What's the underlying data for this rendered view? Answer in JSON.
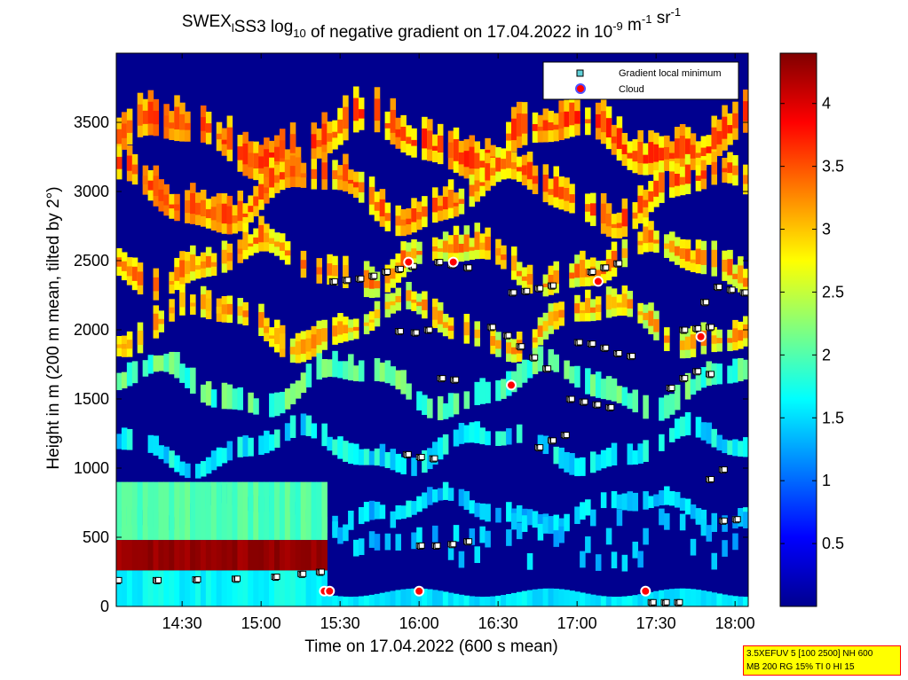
{
  "chart_data": {
    "type": "heatmap",
    "title": "SWEX_lSS3 log_10 of negative gradient on 17.04.2022 in 10^-9 m^-1 sr^-1",
    "xlabel": "Time on 17.04.2022 (600 s mean)",
    "ylabel": "Height in m (200 m mean, tilted by 2°)",
    "xlim": [
      "14:05",
      "18:05"
    ],
    "ylim": [
      0,
      4000
    ],
    "x_ticks": [
      "14:30",
      "15:00",
      "15:30",
      "16:00",
      "16:30",
      "17:00",
      "17:30",
      "18:00"
    ],
    "y_ticks": [
      0,
      500,
      1000,
      1500,
      2000,
      2500,
      3000,
      3500
    ],
    "colorbar": {
      "min": 0,
      "max": 4.4,
      "ticks": [
        0.5,
        1,
        1.5,
        2,
        2.5,
        3,
        3.5,
        4
      ],
      "colormap": "jet"
    },
    "legend_position": "top-right",
    "legend": [
      {
        "label": "Gradient local minimum",
        "marker": "square",
        "color": "#5fd0d8"
      },
      {
        "label": "Cloud",
        "marker": "circle",
        "color": "#ff0000"
      }
    ],
    "fields": {
      "surface_background": 1.3,
      "low_level_plateau": {
        "start": "14:05",
        "end": "15:25",
        "value": 2.0,
        "top": 900
      },
      "dense_layer": {
        "start": "14:05",
        "end": "15:25",
        "bottom": 260,
        "top": 480,
        "value": 4.4
      },
      "near_surface_band": {
        "start": "15:25",
        "end": "18:05",
        "height": 60,
        "value": 1.4
      }
    },
    "series": [
      {
        "name": "Gradient local minimum",
        "segments": [
          {
            "x": [
              "14:05",
              "14:20",
              "14:35",
              "14:50",
              "15:05",
              "15:15",
              "15:22"
            ],
            "y": [
              190,
              190,
              195,
              200,
              215,
              235,
              250
            ]
          },
          {
            "x": [
              "15:27",
              "15:32",
              "15:37",
              "15:42",
              "15:47",
              "15:52",
              "15:57"
            ],
            "y": [
              2350,
              2360,
              2370,
              2390,
              2420,
              2440,
              2460
            ]
          },
          {
            "x": [
              "15:52",
              "15:58",
              "16:03"
            ],
            "y": [
              1990,
              1980,
              2000
            ]
          },
          {
            "x": [
              "15:55",
              "16:00",
              "16:05"
            ],
            "y": [
              1100,
              1080,
              1070
            ]
          },
          {
            "x": [
              "16:00",
              "16:06",
              "16:12",
              "16:18"
            ],
            "y": [
              440,
              440,
              450,
              470
            ]
          },
          {
            "x": [
              "16:07",
              "16:12",
              "16:18"
            ],
            "y": [
              2490,
              2470,
              2450
            ]
          },
          {
            "x": [
              "16:08",
              "16:13"
            ],
            "y": [
              1650,
              1640
            ]
          },
          {
            "x": [
              "16:27",
              "16:33",
              "16:38",
              "16:43",
              "16:48"
            ],
            "y": [
              2020,
              1960,
              1880,
              1800,
              1720
            ]
          },
          {
            "x": [
              "16:35",
              "16:40",
              "16:45",
              "16:50"
            ],
            "y": [
              2270,
              2280,
              2300,
              2320
            ]
          },
          {
            "x": [
              "16:45",
              "16:50",
              "16:55"
            ],
            "y": [
              1150,
              1200,
              1240
            ]
          },
          {
            "x": [
              "16:57",
              "17:02",
              "17:07",
              "17:12"
            ],
            "y": [
              1500,
              1480,
              1460,
              1440
            ]
          },
          {
            "x": [
              "17:00",
              "17:05",
              "17:10",
              "17:15",
              "17:20"
            ],
            "y": [
              1910,
              1900,
              1870,
              1830,
              1810
            ]
          },
          {
            "x": [
              "17:05",
              "17:10",
              "17:15"
            ],
            "y": [
              2420,
              2450,
              2480
            ]
          },
          {
            "x": [
              "17:28",
              "17:33",
              "17:38"
            ],
            "y": [
              30,
              30,
              30
            ]
          },
          {
            "x": [
              "17:35",
              "17:40",
              "17:45",
              "17:50"
            ],
            "y": [
              1580,
              1650,
              1700,
              1680
            ]
          },
          {
            "x": [
              "17:40",
              "17:45",
              "17:50"
            ],
            "y": [
              2000,
              2010,
              2020
            ]
          },
          {
            "x": [
              "17:48",
              "17:53",
              "17:58",
              "18:03"
            ],
            "y": [
              2200,
              2310,
              2290,
              2270
            ]
          },
          {
            "x": [
              "17:55",
              "18:00"
            ],
            "y": [
              620,
              630
            ]
          },
          {
            "x": [
              "17:50",
              "17:55"
            ],
            "y": [
              920,
              990
            ]
          }
        ]
      },
      {
        "name": "Cloud",
        "x": [
          "15:24",
          "15:26",
          "16:00",
          "17:26",
          "15:56",
          "16:13",
          "16:35",
          "17:08",
          "17:47"
        ],
        "y": [
          110,
          110,
          110,
          110,
          2490,
          2490,
          1600,
          2350,
          1950
        ]
      }
    ]
  },
  "info_box": {
    "line1": "3.5XEFUV 5 [100 2500] NH 600",
    "line2": "MB 200 RG 15% TI 0 HI 15"
  },
  "legend_text": {
    "gradient": "Gradient local minimum",
    "cloud": "Cloud"
  }
}
